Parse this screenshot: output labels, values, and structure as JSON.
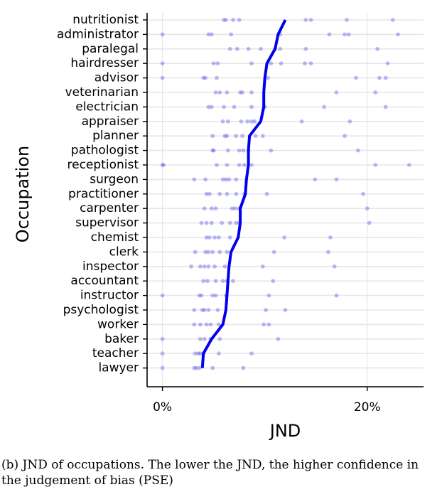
{
  "chart_data": {
    "type": "scatter",
    "xlabel": "JND",
    "ylabel": "Occupation",
    "xlim": [
      -1.5,
      25.5
    ],
    "x_ticks": [
      0,
      20
    ],
    "x_tick_labels": [
      "0%",
      "20%"
    ],
    "grid": true,
    "categories": [
      "nutritionist",
      "administrator",
      "paralegal",
      "hairdresser",
      "advisor",
      "veterinarian",
      "electrician",
      "appraiser",
      "planner",
      "pathologist",
      "receptionist",
      "surgeon",
      "practitioner",
      "carpenter",
      "supervisor",
      "chemist",
      "clerk",
      "inspector",
      "accountant",
      "instructor",
      "psychologist",
      "worker",
      "baker",
      "teacher",
      "lawyer"
    ],
    "mean_line": {
      "color": "#0000ee",
      "values": [
        12.0,
        11.3,
        11.0,
        10.2,
        10.0,
        9.9,
        9.9,
        9.6,
        8.5,
        8.4,
        8.4,
        8.2,
        8.1,
        7.6,
        7.6,
        7.4,
        6.7,
        6.5,
        6.4,
        6.3,
        6.2,
        5.9,
        4.8,
        4.0,
        3.9
      ]
    },
    "points": {
      "color": "#4d4dee",
      "values": [
        [
          6.0,
          6.2,
          6.9,
          7.5,
          14.0,
          14.5,
          18.0,
          22.5
        ],
        [
          0.0,
          4.5,
          4.8,
          6.7,
          11.5,
          16.3,
          17.8,
          18.2,
          23.0
        ],
        [
          6.6,
          7.3,
          8.4,
          9.6,
          11.0,
          11.5,
          14.0,
          21.0
        ],
        [
          0.0,
          5.0,
          5.4,
          8.7,
          10.6,
          11.6,
          13.9,
          14.5,
          22.0
        ],
        [
          0.0,
          4.0,
          4.2,
          5.3,
          10.3,
          18.9,
          21.2,
          21.8
        ],
        [
          5.2,
          5.6,
          6.3,
          7.6,
          7.8,
          8.7,
          17.0,
          20.8
        ],
        [
          4.5,
          4.8,
          6.0,
          7.0,
          8.7,
          10.0,
          15.8,
          21.8
        ],
        [
          5.9,
          6.4,
          7.7,
          8.3,
          8.7,
          9.0,
          13.6,
          18.3
        ],
        [
          4.9,
          6.1,
          6.3,
          7.2,
          7.8,
          9.1,
          9.8,
          17.8
        ],
        [
          4.9,
          5.0,
          6.4,
          7.5,
          7.9,
          8.4,
          10.6,
          19.1
        ],
        [
          0.0,
          0.1,
          5.3,
          6.3,
          7.5,
          8.0,
          8.7,
          20.8,
          24.1
        ],
        [
          3.1,
          4.2,
          5.9,
          6.2,
          6.5,
          7.2,
          14.9,
          17.0
        ],
        [
          4.3,
          4.6,
          5.6,
          6.3,
          7.2,
          8.0,
          10.2,
          19.6
        ],
        [
          4.1,
          4.8,
          5.2,
          6.8,
          7.1,
          7.5,
          20.0
        ],
        [
          3.8,
          4.3,
          4.8,
          5.8,
          6.6,
          7.2,
          7.5,
          20.2
        ],
        [
          4.3,
          4.6,
          5.1,
          5.5,
          6.6,
          11.9,
          16.4
        ],
        [
          3.2,
          4.2,
          4.5,
          4.9,
          5.6,
          6.3,
          10.9,
          16.2
        ],
        [
          2.8,
          3.7,
          4.1,
          4.5,
          5.1,
          6.1,
          9.8,
          16.8
        ],
        [
          4.0,
          4.4,
          5.2,
          5.9,
          6.3,
          6.9,
          10.8
        ],
        [
          0.0,
          3.6,
          3.8,
          4.9,
          5.2,
          6.2,
          10.4,
          17.0
        ],
        [
          3.1,
          3.9,
          4.1,
          4.5,
          5.4,
          10.1,
          12.0
        ],
        [
          3.1,
          3.7,
          4.3,
          4.7,
          5.5,
          9.9,
          10.4
        ],
        [
          0.0,
          3.7,
          4.1,
          4.7,
          5.6,
          11.3
        ],
        [
          0.0,
          3.2,
          3.5,
          3.7,
          4.0,
          5.5,
          8.7
        ],
        [
          0.0,
          3.1,
          3.3,
          3.6,
          4.9,
          7.9
        ]
      ]
    }
  },
  "caption": "(b) JND of occupations. The lower the JND, the higher confidence in the judgement of bias (PSE)"
}
